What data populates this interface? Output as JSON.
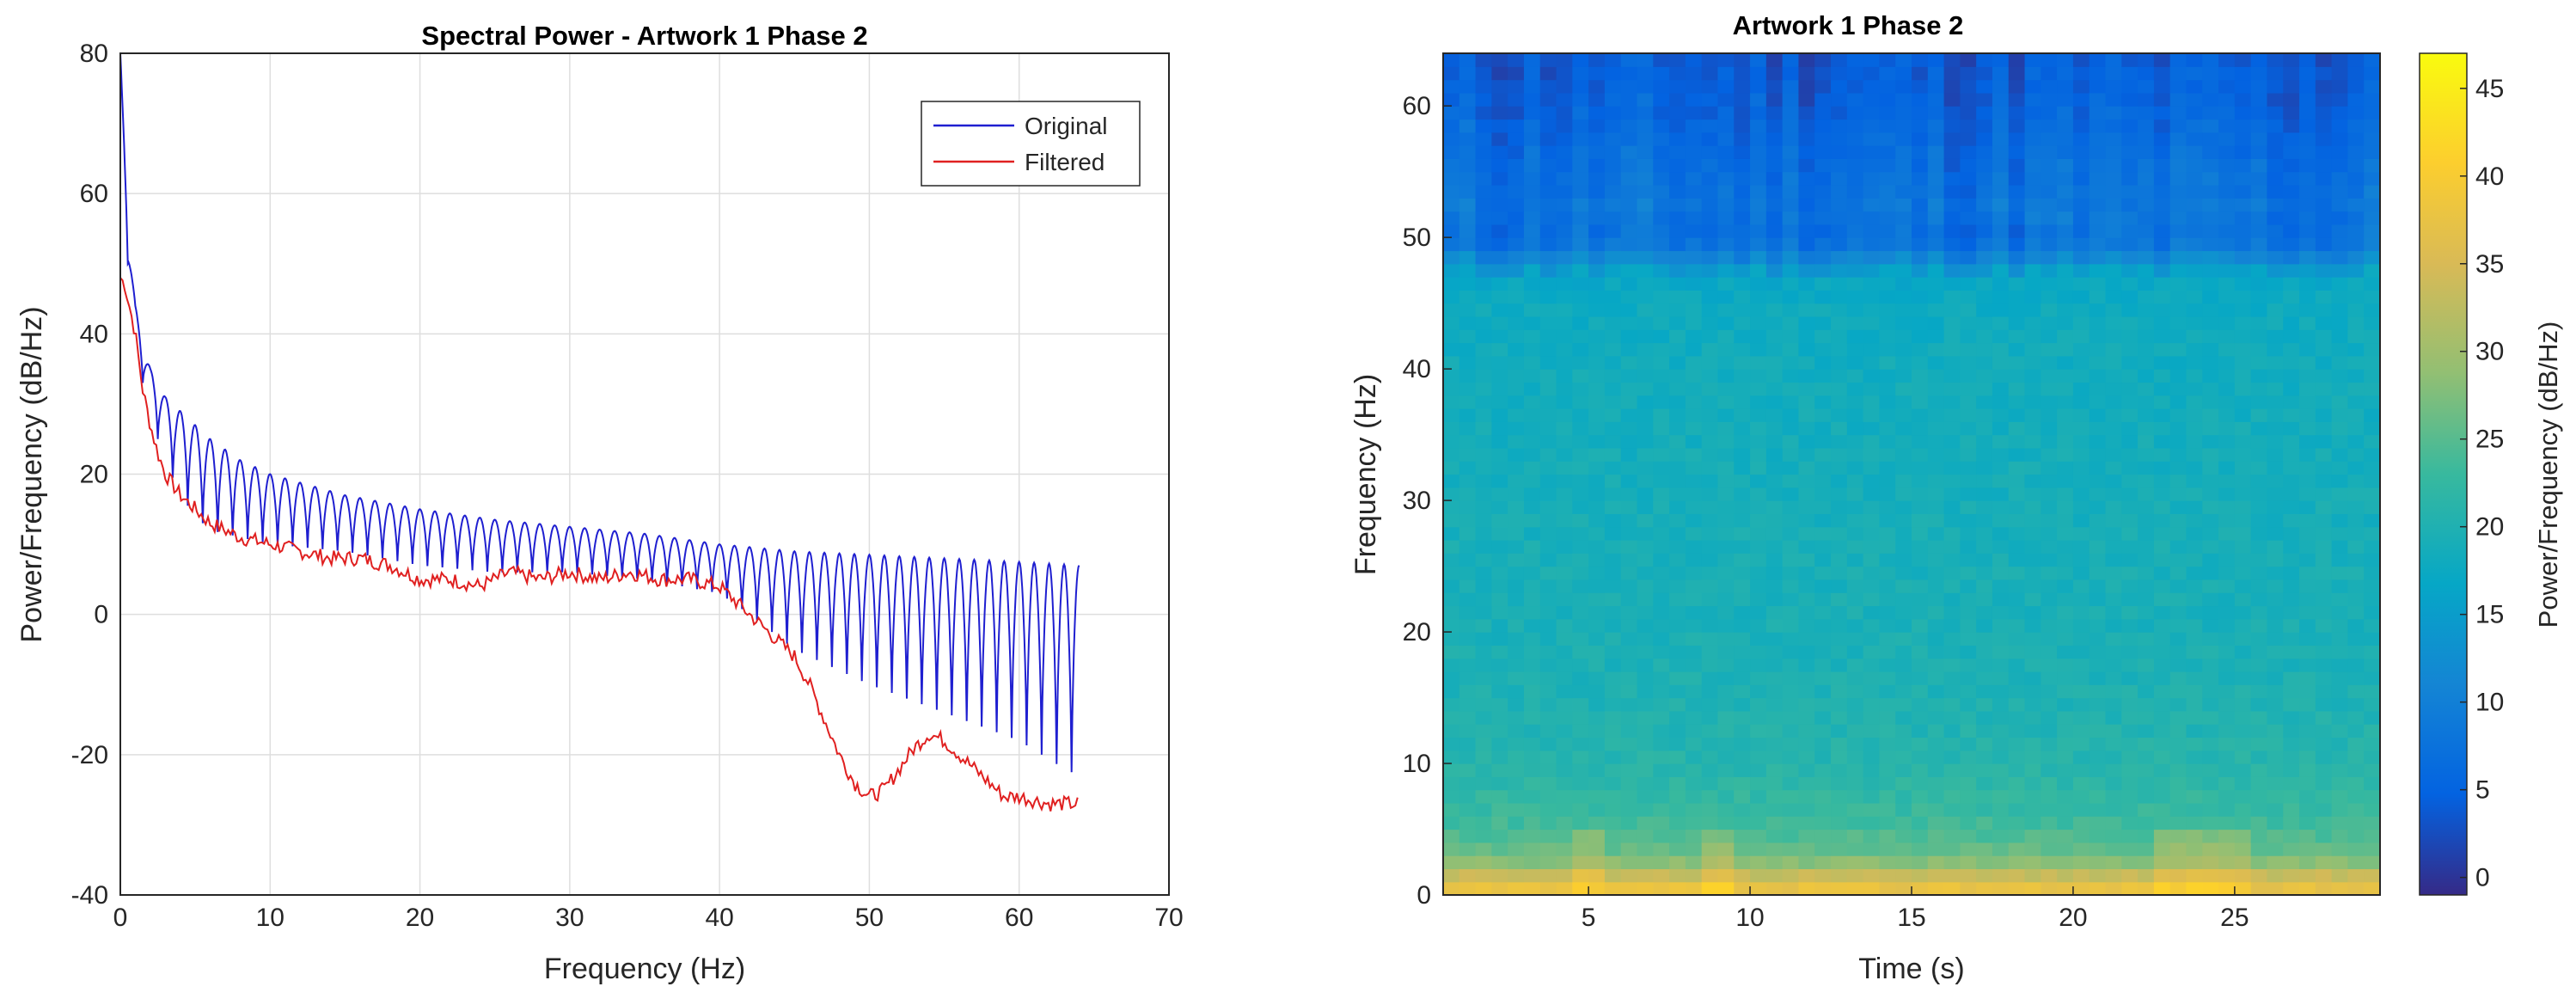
{
  "chart_data": [
    {
      "type": "line",
      "title": "Spectral Power - Artwork 1 Phase 2",
      "xlabel": "Frequency (Hz)",
      "ylabel": "Power/Frequency (dB/Hz)",
      "xlim": [
        0,
        70
      ],
      "ylim": [
        -40,
        80
      ],
      "xticks": [
        0,
        10,
        20,
        30,
        40,
        50,
        60,
        70
      ],
      "yticks": [
        -40,
        -20,
        0,
        20,
        40,
        60,
        80
      ],
      "grid": true,
      "legend_position": "top-right",
      "series": [
        {
          "name": "Original",
          "color": "#1f1fd0",
          "envelope_upper": [
            [
              0,
              80
            ],
            [
              0.5,
              55
            ],
            [
              1,
              44
            ],
            [
              1.5,
              39
            ],
            [
              2,
              35
            ],
            [
              3,
              31
            ],
            [
              4,
              29
            ],
            [
              5,
              27
            ],
            [
              6,
              25
            ],
            [
              8,
              22
            ],
            [
              10,
              20
            ],
            [
              15,
              17
            ],
            [
              20,
              15
            ],
            [
              25,
              13.5
            ],
            [
              30,
              12.5
            ],
            [
              35,
              11.5
            ],
            [
              40,
              10
            ],
            [
              45,
              9
            ],
            [
              50,
              8.5
            ],
            [
              55,
              8
            ],
            [
              60,
              7.5
            ],
            [
              64,
              7
            ]
          ],
          "envelope_lower": [
            [
              0,
              80
            ],
            [
              0.5,
              50
            ],
            [
              1,
              38
            ],
            [
              2,
              28
            ],
            [
              3,
              22
            ],
            [
              4,
              17
            ],
            [
              5,
              14
            ],
            [
              6,
              12
            ],
            [
              8,
              11
            ],
            [
              10,
              10
            ],
            [
              15,
              9
            ],
            [
              20,
              7
            ],
            [
              25,
              6
            ],
            [
              30,
              6
            ],
            [
              35,
              5
            ],
            [
              40,
              3
            ],
            [
              42,
              0
            ],
            [
              45,
              -5
            ],
            [
              48,
              -8
            ],
            [
              50,
              -10
            ],
            [
              55,
              -14
            ],
            [
              60,
              -18
            ],
            [
              63,
              -22
            ],
            [
              64,
              -23
            ]
          ],
          "oscillation_period_hz": 1
        },
        {
          "name": "Filtered",
          "color": "#e02020",
          "points": [
            [
              0,
              48
            ],
            [
              0.3,
              47
            ],
            [
              0.6,
              44
            ],
            [
              1,
              40
            ],
            [
              1.5,
              32
            ],
            [
              2,
              27
            ],
            [
              2.5,
              23
            ],
            [
              3,
              20
            ],
            [
              4,
              17
            ],
            [
              5,
              15
            ],
            [
              6,
              13
            ],
            [
              8,
              11
            ],
            [
              10,
              10
            ],
            [
              12,
              9
            ],
            [
              14,
              8
            ],
            [
              16,
              8
            ],
            [
              18,
              7
            ],
            [
              20,
              5
            ],
            [
              22,
              5
            ],
            [
              24,
              4
            ],
            [
              26,
              6
            ],
            [
              28,
              5
            ],
            [
              30,
              6
            ],
            [
              32,
              5
            ],
            [
              34,
              6
            ],
            [
              36,
              5
            ],
            [
              38,
              5
            ],
            [
              40,
              4
            ],
            [
              41,
              2
            ],
            [
              42,
              0
            ],
            [
              43,
              -2
            ],
            [
              44,
              -4
            ],
            [
              45,
              -6
            ],
            [
              46,
              -10
            ],
            [
              47,
              -15
            ],
            [
              48,
              -20
            ],
            [
              49,
              -24
            ],
            [
              50,
              -26
            ],
            [
              51,
              -25
            ],
            [
              52,
              -22
            ],
            [
              53,
              -19
            ],
            [
              54,
              -17
            ],
            [
              55,
              -18
            ],
            [
              56,
              -20
            ],
            [
              57,
              -22
            ],
            [
              58,
              -24
            ],
            [
              59,
              -26
            ],
            [
              60,
              -26
            ],
            [
              62,
              -27
            ],
            [
              64,
              -27
            ]
          ]
        }
      ]
    },
    {
      "type": "heatmap",
      "title": "Artwork 1 Phase 2",
      "xlabel": "Time (s)",
      "ylabel": "Frequency (Hz)",
      "xlim": [
        0.5,
        29.5
      ],
      "ylim": [
        0,
        64
      ],
      "xticks": [
        5,
        10,
        15,
        20,
        25
      ],
      "yticks": [
        0,
        10,
        20,
        30,
        40,
        50,
        60
      ],
      "colorbar": {
        "label": "Power/Frequency (dB/Hz)",
        "range": [
          -1,
          47
        ],
        "ticks": [
          0,
          5,
          10,
          15,
          20,
          25,
          30,
          35,
          40,
          45
        ],
        "colormap": "parula"
      },
      "time_bins": 58,
      "freq_bins": 64,
      "value_profile_by_frequency": [
        [
          0,
          38
        ],
        [
          1,
          37
        ],
        [
          2,
          30
        ],
        [
          3,
          27
        ],
        [
          4,
          25
        ],
        [
          6,
          23
        ],
        [
          8,
          22
        ],
        [
          10,
          21
        ],
        [
          15,
          20
        ],
        [
          20,
          19.5
        ],
        [
          30,
          19
        ],
        [
          40,
          18.5
        ],
        [
          45,
          18
        ],
        [
          47,
          17
        ],
        [
          48,
          13
        ],
        [
          49,
          9
        ],
        [
          50,
          7
        ],
        [
          52,
          8
        ],
        [
          55,
          7
        ],
        [
          58,
          6
        ],
        [
          60,
          5
        ],
        [
          64,
          4
        ]
      ],
      "bright_time_columns_s": [
        5,
        9,
        23,
        24,
        25
      ]
    }
  ]
}
